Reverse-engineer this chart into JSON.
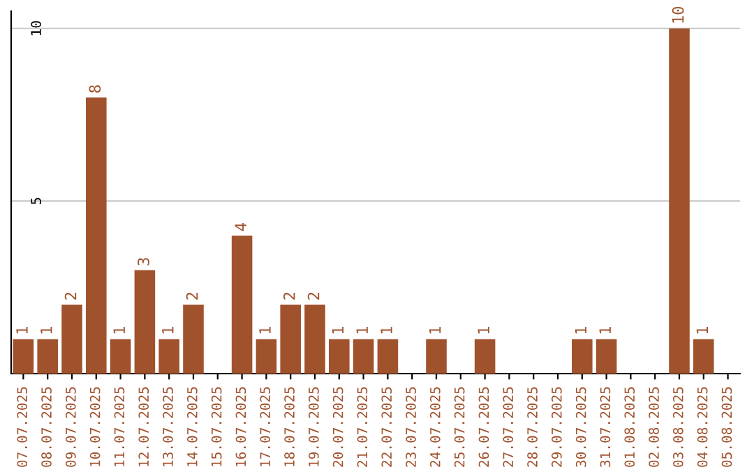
{
  "chart_data": {
    "type": "bar",
    "categories": [
      "07.07.2025",
      "08.07.2025",
      "09.07.2025",
      "10.07.2025",
      "11.07.2025",
      "12.07.2025",
      "13.07.2025",
      "14.07.2025",
      "15.07.2025",
      "16.07.2025",
      "17.07.2025",
      "18.07.2025",
      "19.07.2025",
      "20.07.2025",
      "21.07.2025",
      "22.07.2025",
      "23.07.2025",
      "24.07.2025",
      "25.07.2025",
      "26.07.2025",
      "27.07.2025",
      "28.07.2025",
      "29.07.2025",
      "30.07.2025",
      "31.07.2025",
      "01.08.2025",
      "02.08.2025",
      "03.08.2025",
      "04.08.2025",
      "05.08.2025"
    ],
    "values": [
      1,
      1,
      2,
      8,
      1,
      3,
      1,
      2,
      0,
      4,
      1,
      2,
      2,
      1,
      1,
      1,
      0,
      1,
      0,
      1,
      0,
      0,
      0,
      1,
      1,
      0,
      0,
      10,
      1,
      0
    ],
    "value_labels": [
      "1",
      "1",
      "2",
      "8",
      "1",
      "3",
      "1",
      "2",
      null,
      "4",
      "1",
      "2",
      "2",
      "1",
      "1",
      "1",
      null,
      "1",
      null,
      "1",
      null,
      null,
      null,
      "1",
      "1",
      null,
      null,
      "10",
      "1",
      null
    ],
    "color": "#a0522d",
    "ylim": [
      0,
      10.5
    ],
    "yticks": [
      5,
      10
    ],
    "grid": "y"
  }
}
